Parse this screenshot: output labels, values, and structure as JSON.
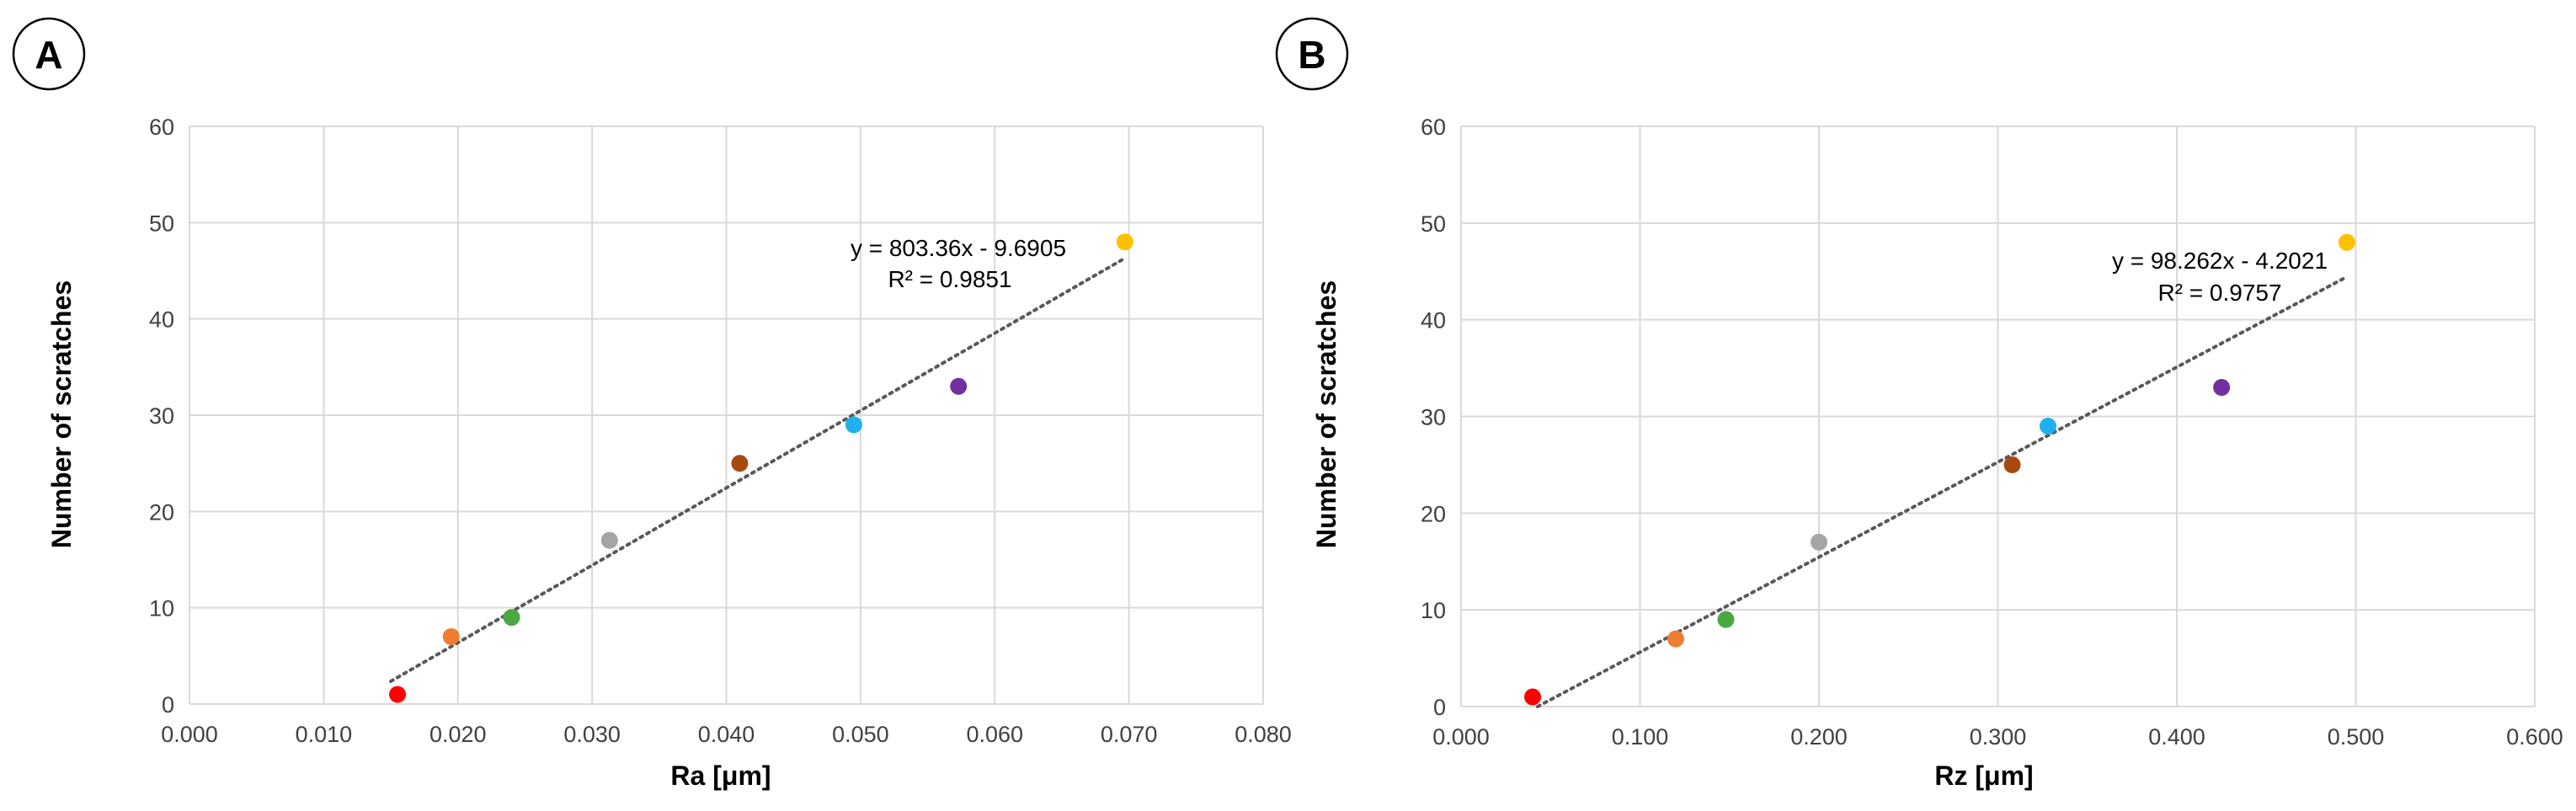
{
  "chart_data": [
    {
      "type": "scatter",
      "panel_label": "A",
      "xlabel": "Ra [μm]",
      "ylabel": "Number of scratches",
      "xlim": [
        0,
        0.08
      ],
      "ylim": [
        0,
        60
      ],
      "x_ticks": [
        "0.000",
        "0.010",
        "0.020",
        "0.030",
        "0.040",
        "0.050",
        "0.060",
        "0.070",
        "0.080"
      ],
      "y_ticks": [
        "0",
        "10",
        "20",
        "30",
        "40",
        "50",
        "60"
      ],
      "grid": true,
      "points": [
        {
          "x": 0.0155,
          "y": 1,
          "color": "#ff0000"
        },
        {
          "x": 0.0195,
          "y": 7,
          "color": "#ed7d31"
        },
        {
          "x": 0.024,
          "y": 9,
          "color": "#4aa843"
        },
        {
          "x": 0.0313,
          "y": 17,
          "color": "#a5a5a5"
        },
        {
          "x": 0.041,
          "y": 25,
          "color": "#a84a10"
        },
        {
          "x": 0.0495,
          "y": 29,
          "color": "#1fb0ef"
        },
        {
          "x": 0.0573,
          "y": 33,
          "color": "#7030a0"
        },
        {
          "x": 0.0697,
          "y": 48,
          "color": "#ffc000"
        }
      ],
      "trendline": {
        "slope": 803.36,
        "intercept": -9.6905,
        "x_start": 0.015,
        "x_end": 0.0697
      },
      "equation": "y = 803.36x - 9.6905",
      "r_squared": "R² = 0.9851"
    },
    {
      "type": "scatter",
      "panel_label": "B",
      "xlabel": "Rz [μm]",
      "ylabel": "Number of scratches",
      "xlim": [
        0,
        0.6
      ],
      "ylim": [
        0,
        60
      ],
      "x_ticks": [
        "0.000",
        "0.100",
        "0.200",
        "0.300",
        "0.400",
        "0.500",
        "0.600"
      ],
      "y_ticks": [
        "0",
        "10",
        "20",
        "30",
        "40",
        "50",
        "60"
      ],
      "grid": true,
      "points": [
        {
          "x": 0.04,
          "y": 1,
          "color": "#ff0000"
        },
        {
          "x": 0.12,
          "y": 7,
          "color": "#ed7d31"
        },
        {
          "x": 0.148,
          "y": 9,
          "color": "#4aa843"
        },
        {
          "x": 0.2,
          "y": 17,
          "color": "#a5a5a5"
        },
        {
          "x": 0.308,
          "y": 25,
          "color": "#a84a10"
        },
        {
          "x": 0.328,
          "y": 29,
          "color": "#1fb0ef"
        },
        {
          "x": 0.425,
          "y": 33,
          "color": "#7030a0"
        },
        {
          "x": 0.495,
          "y": 48,
          "color": "#ffc000"
        }
      ],
      "trendline": {
        "slope": 98.262,
        "intercept": -4.2021,
        "x_start": 0.0428,
        "x_end": 0.495
      },
      "equation": "y = 98.262x - 4.2021",
      "r_squared": "R² = 0.9757"
    }
  ]
}
